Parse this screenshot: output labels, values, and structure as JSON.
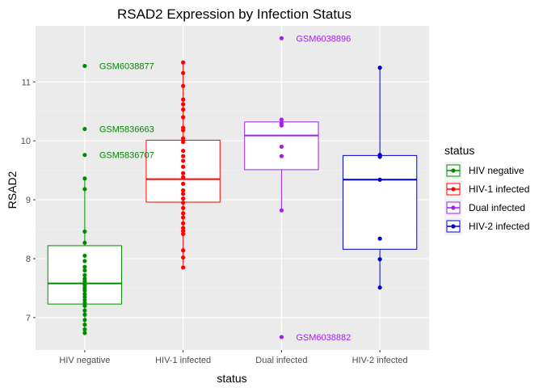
{
  "chart_data": {
    "type": "boxplot",
    "title": "RSAD2 Expression by Infection Status",
    "xlabel": "status",
    "ylabel": "RSAD2",
    "ylim": [
      6.45,
      11.95
    ],
    "yticks": [
      7,
      8,
      9,
      10,
      11
    ],
    "categories": [
      "HIV negative",
      "HIV-1 infected",
      "Dual infected",
      "HIV-2 infected"
    ],
    "legend": {
      "title": "status",
      "position": "right",
      "entries": [
        "HIV negative",
        "HIV-1 infected",
        "Dual infected",
        "HIV-2 infected"
      ]
    },
    "grid": true,
    "series": [
      {
        "name": "HIV negative",
        "color": "#008B00",
        "box": {
          "q1": 7.23,
          "median": 7.58,
          "q3": 8.22
        },
        "points": [
          11.27,
          10.2,
          9.76,
          9.36,
          9.18,
          8.46,
          8.27,
          8.05,
          7.96,
          7.86,
          7.8,
          7.72,
          7.66,
          7.62,
          7.58,
          7.55,
          7.5,
          7.46,
          7.4,
          7.35,
          7.3,
          7.25,
          7.2,
          7.12,
          7.05,
          6.96,
          6.88,
          6.8,
          6.74
        ]
      },
      {
        "name": "HIV-1 infected",
        "color": "#FF0000",
        "box": {
          "q1": 8.96,
          "median": 9.35,
          "q3": 10.01
        },
        "points": [
          11.33,
          11.15,
          10.93,
          10.7,
          10.62,
          10.53,
          10.4,
          10.22,
          10.18,
          10.04,
          9.98,
          9.83,
          9.74,
          9.66,
          9.56,
          9.45,
          9.38,
          9.27,
          9.16,
          9.1,
          9.02,
          8.95,
          8.86,
          8.77,
          8.7,
          8.6,
          8.52,
          8.47,
          8.42,
          8.14,
          8.02,
          7.85
        ]
      },
      {
        "name": "Dual infected",
        "color": "#A020F0",
        "box": {
          "q1": 9.51,
          "median": 10.09,
          "q3": 10.32
        },
        "points": [
          11.74,
          10.36,
          10.3,
          10.26,
          9.9,
          9.74,
          8.82,
          6.67
        ]
      },
      {
        "name": "HIV-2 infected",
        "color": "#0000CD",
        "box": {
          "q1": 8.16,
          "median": 9.34,
          "q3": 9.75
        },
        "points": [
          11.24,
          9.76,
          9.73,
          9.34,
          8.34,
          7.99,
          7.51
        ]
      }
    ],
    "annotations": [
      {
        "text": "GSM6038877",
        "category": "HIV negative",
        "y": 11.27
      },
      {
        "text": "GSM5836663",
        "category": "HIV negative",
        "y": 10.2
      },
      {
        "text": "GSM5836707",
        "category": "HIV negative",
        "y": 9.76
      },
      {
        "text": "GSM6038896",
        "category": "Dual infected",
        "y": 11.74
      },
      {
        "text": "GSM6038882",
        "category": "Dual infected",
        "y": 6.67
      }
    ]
  }
}
